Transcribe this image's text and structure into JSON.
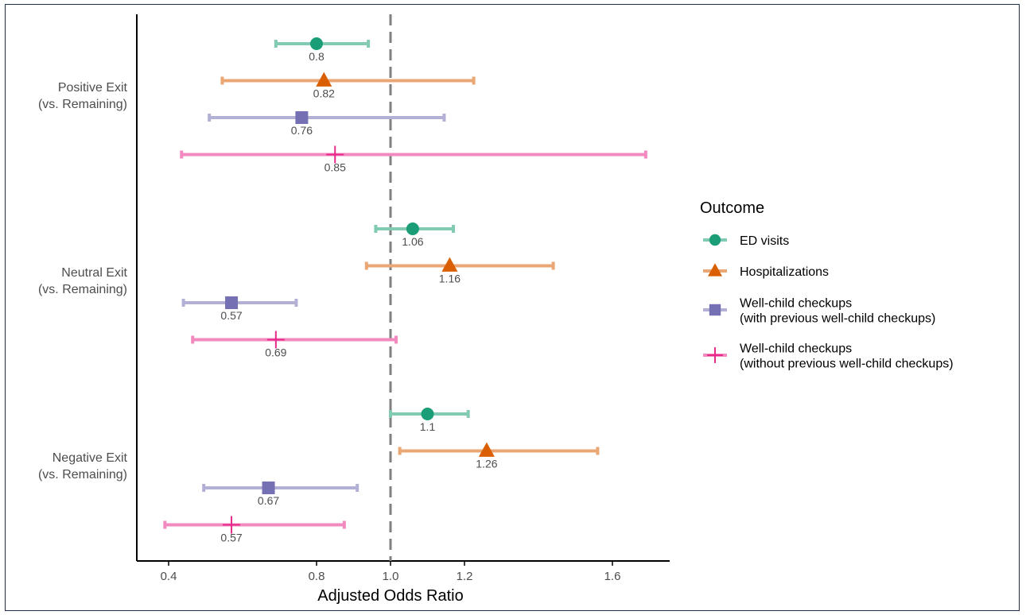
{
  "chart_data": {
    "type": "scatter",
    "subtype": "forest-plot",
    "xlabel": "Adjusted Odds Ratio",
    "xlim": [
      0.36,
      1.75
    ],
    "xticks": [
      0.4,
      0.8,
      1.0,
      1.2,
      1.6
    ],
    "xtick_labels": [
      "0.4",
      "0.8",
      "1.0",
      "1.2",
      "1.6"
    ],
    "reference_line": 1.0,
    "grid": false,
    "legend": {
      "title": "Outcome",
      "placement": "right",
      "entries": [
        {
          "label": "ED visits",
          "color": "#1b9e77",
          "shape": "circle"
        },
        {
          "label": "Hospitalizations",
          "color": "#d95f02",
          "shape": "triangle"
        },
        {
          "label": "Well-child checkups\n(with previous well-child checkups)",
          "color": "#7570b3",
          "shape": "square"
        },
        {
          "label": "Well-child checkups\n(without previous well-child checkups)",
          "color": "#e7298a",
          "shape": "cross"
        }
      ]
    },
    "groups": [
      {
        "label": "Positive Exit\n(vs. Remaining)",
        "estimates": [
          {
            "outcome": "ED visits",
            "or": 0.8,
            "lo": 0.69,
            "hi": 0.94,
            "label": "0.8"
          },
          {
            "outcome": "Hospitalizations",
            "or": 0.82,
            "lo": 0.545,
            "hi": 1.225,
            "label": "0.82"
          },
          {
            "outcome": "Well-child checkups\n(with previous well-child checkups)",
            "or": 0.76,
            "lo": 0.51,
            "hi": 1.145,
            "label": "0.76"
          },
          {
            "outcome": "Well-child checkups\n(without previous well-child checkups)",
            "or": 0.85,
            "lo": 0.435,
            "hi": 1.69,
            "label": "0.85"
          }
        ]
      },
      {
        "label": "Neutral Exit\n(vs. Remaining)",
        "estimates": [
          {
            "outcome": "ED visits",
            "or": 1.06,
            "lo": 0.96,
            "hi": 1.17,
            "label": "1.06"
          },
          {
            "outcome": "Hospitalizations",
            "or": 1.16,
            "lo": 0.935,
            "hi": 1.44,
            "label": "1.16"
          },
          {
            "outcome": "Well-child checkups\n(with previous well-child checkups)",
            "or": 0.57,
            "lo": 0.44,
            "hi": 0.745,
            "label": "0.57"
          },
          {
            "outcome": "Well-child checkups\n(without previous well-child checkups)",
            "or": 0.69,
            "lo": 0.465,
            "hi": 1.015,
            "label": "0.69"
          }
        ]
      },
      {
        "label": "Negative Exit\n(vs. Remaining)",
        "estimates": [
          {
            "outcome": "ED visits",
            "or": 1.1,
            "lo": 1.0,
            "hi": 1.21,
            "label": "1.1"
          },
          {
            "outcome": "Hospitalizations",
            "or": 1.26,
            "lo": 1.025,
            "hi": 1.56,
            "label": "1.26"
          },
          {
            "outcome": "Well-child checkups\n(with previous well-child checkups)",
            "or": 0.67,
            "lo": 0.495,
            "hi": 0.91,
            "label": "0.67"
          },
          {
            "outcome": "Well-child checkups\n(without previous well-child checkups)",
            "or": 0.57,
            "lo": 0.39,
            "hi": 0.875,
            "label": "0.57"
          }
        ]
      }
    ]
  }
}
